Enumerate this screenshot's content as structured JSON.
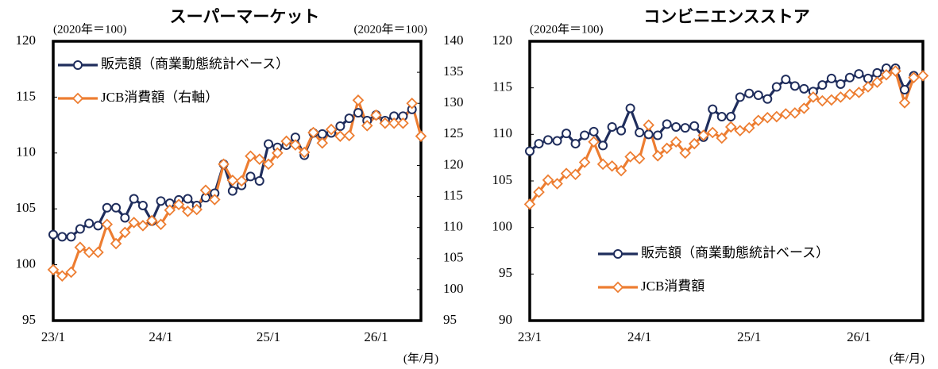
{
  "chart_data": [
    {
      "type": "line",
      "title": "スーパーマーケット",
      "y_label": "(2020年＝100)",
      "y2_label": "(2020年＝100)",
      "x_label": "(年/月)",
      "categories": [
        "23/1",
        null,
        null,
        null,
        null,
        null,
        null,
        null,
        null,
        null,
        null,
        null,
        "24/1",
        null,
        null,
        null,
        null,
        null,
        null,
        null,
        null,
        null,
        null,
        null,
        "25/1",
        null,
        null,
        null,
        null,
        null,
        null,
        null,
        null,
        null,
        null,
        null,
        "26/1",
        null,
        null,
        null,
        null,
        null
      ],
      "ylim": [
        95,
        120
      ],
      "yticks": [
        95,
        100,
        105,
        110,
        115,
        120
      ],
      "y2lim": [
        95,
        140
      ],
      "y2ticks": [
        95,
        100,
        105,
        110,
        115,
        120,
        125,
        130,
        135,
        140
      ],
      "legend": "upper left",
      "series": [
        {
          "name": "販売額（商業動態統計ベース）",
          "color": "#1f2d5c",
          "marker": "circle",
          "values": [
            102.7,
            102.5,
            102.5,
            103.2,
            103.7,
            103.5,
            105.1,
            105.1,
            104.2,
            105.9,
            105.3,
            103.9,
            105.7,
            105.5,
            105.8,
            105.9,
            105.3,
            106.0,
            106.4,
            109.0,
            106.6,
            107.1,
            107.9,
            107.5,
            110.8,
            110.5,
            110.7,
            111.4,
            109.8,
            111.8,
            111.7,
            111.8,
            112.4,
            113.1,
            113.6,
            112.9,
            113.4,
            112.9,
            113.3,
            113.3,
            113.9,
            null
          ]
        },
        {
          "name": "JCB消費額（右軸）",
          "color": "#ed7d31",
          "marker": "diamond",
          "axis": "y2",
          "values": [
            103.2,
            102.2,
            102.8,
            106.8,
            106.0,
            106.0,
            110.5,
            107.4,
            109.2,
            110.8,
            110.3,
            111.1,
            110.5,
            112.8,
            113.7,
            112.6,
            112.9,
            116.0,
            114.5,
            120.2,
            117.6,
            117.5,
            121.5,
            121.0,
            120.2,
            122.0,
            123.9,
            123.3,
            122.1,
            125.3,
            123.6,
            125.8,
            124.7,
            124.8,
            130.5,
            126.4,
            128.1,
            126.8,
            126.8,
            126.8,
            130.0,
            124.7
          ]
        }
      ]
    },
    {
      "type": "line",
      "title": "コンビニエンスストア",
      "y_label": "(2020年＝100)",
      "x_label": "(年/月)",
      "categories": [
        "23/1",
        null,
        null,
        null,
        null,
        null,
        null,
        null,
        null,
        null,
        null,
        null,
        "24/1",
        null,
        null,
        null,
        null,
        null,
        null,
        null,
        null,
        null,
        null,
        null,
        "25/1",
        null,
        null,
        null,
        null,
        null,
        null,
        null,
        null,
        null,
        null,
        null,
        "26/1",
        null,
        null,
        null,
        null,
        null,
        null,
        null
      ],
      "ylim": [
        90,
        120
      ],
      "yticks": [
        90,
        95,
        100,
        105,
        110,
        115,
        120
      ],
      "legend": "lower right",
      "series": [
        {
          "name": "販売額（商業動態統計ベース）",
          "color": "#1f2d5c",
          "marker": "circle",
          "values": [
            108.2,
            109.0,
            109.4,
            109.3,
            110.1,
            109.0,
            109.9,
            110.3,
            108.8,
            110.8,
            110.4,
            112.8,
            110.2,
            110.0,
            109.9,
            111.1,
            110.8,
            110.7,
            110.9,
            109.7,
            112.7,
            111.9,
            111.9,
            114.0,
            114.4,
            114.2,
            113.8,
            115.1,
            115.9,
            115.2,
            114.9,
            114.6,
            115.3,
            116.0,
            115.4,
            116.1,
            116.5,
            116.0,
            116.6,
            117.1,
            117.1,
            114.8,
            116.3,
            null
          ]
        },
        {
          "name": "JCB消費額",
          "color": "#ed7d31",
          "marker": "diamond",
          "values": [
            102.5,
            103.8,
            105.1,
            104.7,
            105.8,
            105.7,
            107.0,
            109.2,
            106.8,
            106.6,
            106.1,
            107.6,
            107.4,
            111.0,
            107.7,
            108.5,
            109.2,
            108.0,
            109.0,
            109.9,
            110.2,
            109.6,
            110.8,
            110.4,
            110.7,
            111.5,
            111.8,
            111.9,
            112.2,
            112.3,
            112.8,
            114.0,
            113.6,
            113.7,
            114.0,
            114.3,
            114.5,
            115.1,
            115.6,
            116.4,
            116.8,
            113.4,
            116.1,
            116.3
          ]
        }
      ]
    }
  ]
}
